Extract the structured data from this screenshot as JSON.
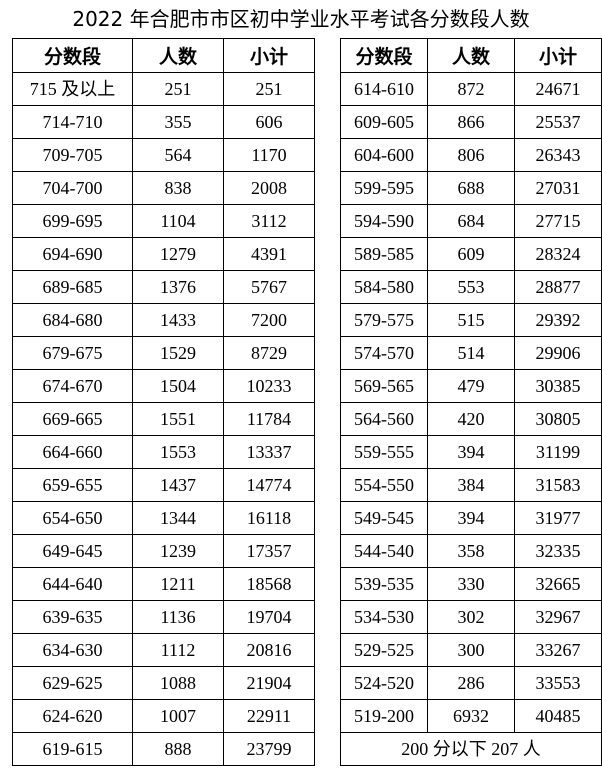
{
  "title": "2022 年合肥市市区初中学业水平考试各分数段人数",
  "headers": [
    "分数段",
    "人数",
    "小计"
  ],
  "left_rows": [
    [
      "715 及以上",
      "251",
      "251"
    ],
    [
      "714-710",
      "355",
      "606"
    ],
    [
      "709-705",
      "564",
      "1170"
    ],
    [
      "704-700",
      "838",
      "2008"
    ],
    [
      "699-695",
      "1104",
      "3112"
    ],
    [
      "694-690",
      "1279",
      "4391"
    ],
    [
      "689-685",
      "1376",
      "5767"
    ],
    [
      "684-680",
      "1433",
      "7200"
    ],
    [
      "679-675",
      "1529",
      "8729"
    ],
    [
      "674-670",
      "1504",
      "10233"
    ],
    [
      "669-665",
      "1551",
      "11784"
    ],
    [
      "664-660",
      "1553",
      "13337"
    ],
    [
      "659-655",
      "1437",
      "14774"
    ],
    [
      "654-650",
      "1344",
      "16118"
    ],
    [
      "649-645",
      "1239",
      "17357"
    ],
    [
      "644-640",
      "1211",
      "18568"
    ],
    [
      "639-635",
      "1136",
      "19704"
    ],
    [
      "634-630",
      "1112",
      "20816"
    ],
    [
      "629-625",
      "1088",
      "21904"
    ],
    [
      "624-620",
      "1007",
      "22911"
    ],
    [
      "619-615",
      "888",
      "23799"
    ]
  ],
  "right_rows": [
    [
      "614-610",
      "872",
      "24671"
    ],
    [
      "609-605",
      "866",
      "25537"
    ],
    [
      "604-600",
      "806",
      "26343"
    ],
    [
      "599-595",
      "688",
      "27031"
    ],
    [
      "594-590",
      "684",
      "27715"
    ],
    [
      "589-585",
      "609",
      "28324"
    ],
    [
      "584-580",
      "553",
      "28877"
    ],
    [
      "579-575",
      "515",
      "29392"
    ],
    [
      "574-570",
      "514",
      "29906"
    ],
    [
      "569-565",
      "479",
      "30385"
    ],
    [
      "564-560",
      "420",
      "30805"
    ],
    [
      "559-555",
      "394",
      "31199"
    ],
    [
      "554-550",
      "384",
      "31583"
    ],
    [
      "549-545",
      "394",
      "31977"
    ],
    [
      "544-540",
      "358",
      "32335"
    ],
    [
      "539-535",
      "330",
      "32665"
    ],
    [
      "534-530",
      "302",
      "32967"
    ],
    [
      "529-525",
      "300",
      "33267"
    ],
    [
      "524-520",
      "286",
      "33553"
    ],
    [
      "519-200",
      "6932",
      "40485"
    ]
  ],
  "footer_note": "200 分以下 207 人"
}
